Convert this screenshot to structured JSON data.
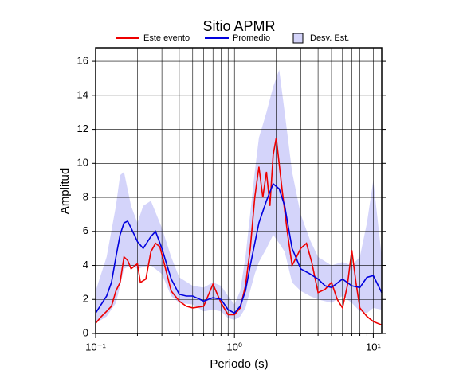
{
  "chart_data": {
    "type": "line",
    "title": "Sitio APMR",
    "xlabel": "Periodo (s)",
    "ylabel": "Amplitud",
    "xscale": "log",
    "xlim": [
      0.1,
      11.5
    ],
    "ylim": [
      0,
      16.8
    ],
    "xticks": [
      {
        "value": 0.1,
        "label": "10⁻¹"
      },
      {
        "value": 1,
        "label": "10⁰"
      },
      {
        "value": 10,
        "label": "10¹"
      }
    ],
    "minor_xticks": [
      0.2,
      0.3,
      0.4,
      0.5,
      0.6,
      0.7,
      0.8,
      0.9,
      2,
      3,
      4,
      5,
      6,
      7,
      8,
      9
    ],
    "yticks": [
      0,
      2,
      4,
      6,
      8,
      10,
      12,
      14,
      16
    ],
    "grid": true,
    "band": {
      "name": "Desv. Est.",
      "color": "#d4d4fa",
      "x": [
        0.1,
        0.12,
        0.14,
        0.15,
        0.16,
        0.18,
        0.2,
        0.22,
        0.25,
        0.3,
        0.35,
        0.4,
        0.5,
        0.6,
        0.7,
        0.8,
        0.9,
        1.0,
        1.1,
        1.2,
        1.4,
        1.5,
        1.7,
        1.9,
        2.1,
        2.3,
        2.6,
        3,
        3.5,
        4,
        5,
        6,
        7,
        8,
        9,
        10,
        11.5
      ],
      "upper": [
        2.5,
        4.5,
        7.5,
        9.3,
        9.5,
        7.5,
        6.5,
        7.5,
        7.8,
        6.2,
        4.5,
        3.3,
        2.8,
        2.7,
        3.0,
        2.8,
        2.2,
        1.7,
        2.5,
        4.5,
        9.5,
        11.5,
        13.0,
        14.5,
        15.5,
        13.0,
        9.5,
        7.0,
        5.5,
        4.5,
        4.0,
        4.2,
        4.0,
        4.5,
        6.5,
        9.0,
        4.5
      ],
      "lower": [
        0.6,
        1.0,
        1.8,
        2.8,
        3.8,
        4.0,
        3.8,
        3.9,
        4.0,
        3.5,
        2.2,
        1.8,
        1.7,
        1.3,
        1.4,
        1.3,
        0.9,
        0.8,
        1.0,
        1.5,
        3.5,
        4.2,
        5.0,
        5.8,
        5.3,
        4.8,
        3.0,
        2.5,
        2.2,
        2.0,
        1.8,
        2.2,
        1.8,
        1.3,
        1.2,
        1.5,
        1.4
      ]
    },
    "series": [
      {
        "name": "Este evento",
        "color": "#ee0000",
        "x": [
          0.1,
          0.11,
          0.12,
          0.13,
          0.14,
          0.15,
          0.16,
          0.17,
          0.18,
          0.2,
          0.21,
          0.23,
          0.25,
          0.27,
          0.29,
          0.31,
          0.35,
          0.4,
          0.45,
          0.5,
          0.6,
          0.7,
          0.8,
          0.9,
          1.0,
          1.1,
          1.2,
          1.3,
          1.4,
          1.5,
          1.6,
          1.7,
          1.8,
          1.9,
          2.0,
          2.2,
          2.4,
          2.6,
          2.8,
          3.0,
          3.3,
          3.6,
          4.0,
          4.5,
          5.0,
          5.5,
          6.0,
          6.5,
          7.0,
          7.5,
          8.0,
          9.0,
          10,
          11.5
        ],
        "values": [
          0.6,
          1.0,
          1.3,
          1.6,
          2.5,
          3.0,
          4.5,
          4.3,
          3.8,
          4.1,
          3.0,
          3.2,
          4.8,
          5.3,
          5.1,
          4.2,
          2.5,
          1.9,
          1.6,
          1.5,
          1.6,
          2.9,
          1.8,
          1.1,
          1.1,
          1.5,
          2.8,
          5.0,
          8.0,
          9.8,
          8.0,
          9.5,
          7.5,
          10.5,
          11.5,
          8.5,
          6.0,
          4.0,
          4.5,
          5.0,
          5.3,
          4.2,
          2.4,
          2.6,
          3.0,
          2.0,
          1.5,
          2.8,
          4.9,
          3.0,
          1.5,
          1.0,
          0.7,
          0.5
        ]
      },
      {
        "name": "Promedio",
        "color": "#0000dd",
        "x": [
          0.1,
          0.12,
          0.13,
          0.14,
          0.15,
          0.16,
          0.17,
          0.18,
          0.2,
          0.22,
          0.25,
          0.27,
          0.3,
          0.35,
          0.4,
          0.45,
          0.5,
          0.6,
          0.7,
          0.8,
          0.9,
          1.0,
          1.1,
          1.2,
          1.3,
          1.5,
          1.7,
          1.9,
          2.1,
          2.3,
          2.6,
          3.0,
          3.5,
          4.0,
          4.5,
          5.0,
          6.0,
          7.0,
          8.0,
          9.0,
          10,
          11.5
        ],
        "values": [
          1.2,
          2.2,
          3.0,
          4.5,
          5.8,
          6.5,
          6.6,
          6.2,
          5.4,
          5.0,
          5.7,
          6.0,
          5.0,
          3.2,
          2.3,
          2.2,
          2.2,
          1.9,
          2.1,
          2.0,
          1.4,
          1.2,
          1.6,
          2.5,
          4.0,
          6.5,
          7.8,
          8.8,
          8.5,
          7.5,
          5.0,
          3.8,
          3.5,
          3.2,
          2.8,
          2.7,
          3.2,
          2.8,
          2.7,
          3.3,
          3.4,
          2.4
        ]
      }
    ]
  }
}
